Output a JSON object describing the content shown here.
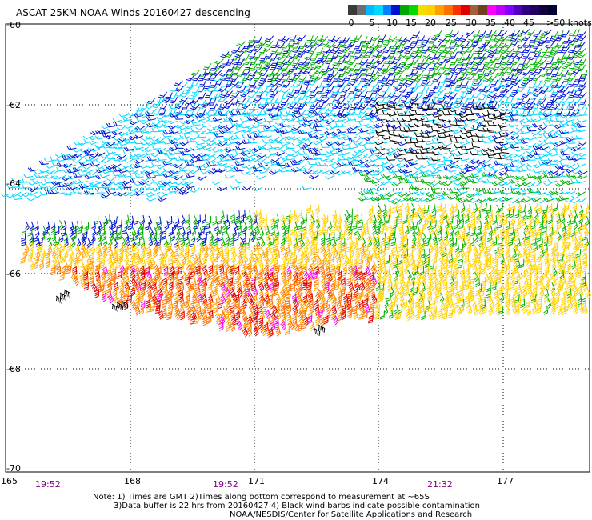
{
  "title": "ASCAT 25KM NOAA Winds 20160427 descending",
  "legend": {
    "ticks": [
      "0",
      "5",
      "10",
      "15",
      "20",
      "25",
      "30",
      "35",
      "40",
      "45"
    ],
    "unit": ">50 knots",
    "colors": [
      "#3a3a3a",
      "#6e6e6e",
      "#00b8ff",
      "#00d8ff",
      "#0080ff",
      "#0010d0",
      "#00a800",
      "#00d800",
      "#f0e000",
      "#ffd000",
      "#ffa000",
      "#ff7000",
      "#ff3000",
      "#e00000",
      "#a06040",
      "#704020",
      "#ff00ff",
      "#c000ff",
      "#8000ff",
      "#5000c0",
      "#300080",
      "#200060",
      "#100040",
      "#000030"
    ]
  },
  "map": {
    "lat_labels": [
      "-60",
      "-62",
      "-64",
      "-66",
      "-68",
      "-70"
    ],
    "lon_labels": [
      "165",
      "168",
      "171",
      "174",
      "177"
    ],
    "time_labels": [
      "19:52",
      "19:52",
      "21:32"
    ],
    "wind_colors": {
      "calm": "#000000",
      "light": "#00d8ff",
      "moderate": "#0010d0",
      "fresh": "#00b000",
      "strong": "#ffd000",
      "gale": "#ffa000",
      "storm": "#ff7000",
      "severe": "#e00000",
      "extreme": "#ff00ff"
    }
  },
  "notes": [
    "Note: 1) Times are GMT 2)Times along bottom correspond to measurement at ~65S",
    "3)Data buffer is 22 hrs from 20160427 4) Black wind barbs indicate possible contamination",
    "NOAA/NESDIS/Center for Satellite Applications and Research"
  ]
}
